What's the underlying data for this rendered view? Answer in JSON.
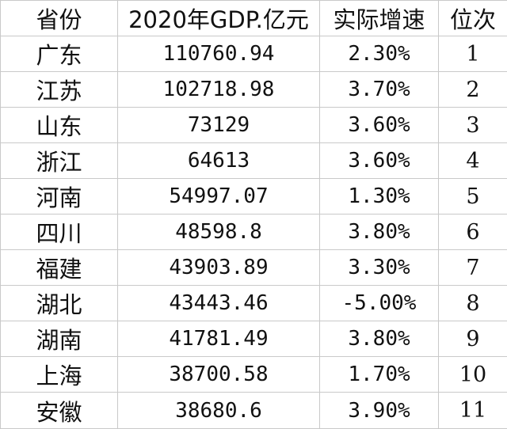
{
  "table": {
    "headers": [
      "省份",
      "2020年GDP.亿元",
      "实际增速",
      "位次"
    ],
    "rows": [
      {
        "province": "广东",
        "gdp": "110760.94",
        "growth": "2.30%",
        "rank": "1"
      },
      {
        "province": "江苏",
        "gdp": "102718.98",
        "growth": "3.70%",
        "rank": "2"
      },
      {
        "province": "山东",
        "gdp": "73129",
        "growth": "3.60%",
        "rank": "3"
      },
      {
        "province": "浙江",
        "gdp": "64613",
        "growth": "3.60%",
        "rank": "4"
      },
      {
        "province": "河南",
        "gdp": "54997.07",
        "growth": "1.30%",
        "rank": "5"
      },
      {
        "province": "四川",
        "gdp": "48598.8",
        "growth": "3.80%",
        "rank": "6"
      },
      {
        "province": "福建",
        "gdp": "43903.89",
        "growth": "3.30%",
        "rank": "7"
      },
      {
        "province": "湖北",
        "gdp": "43443.46",
        "growth": "-5.00%",
        "rank": "8"
      },
      {
        "province": "湖南",
        "gdp": "41781.49",
        "growth": "3.80%",
        "rank": "9"
      },
      {
        "province": "上海",
        "gdp": "38700.58",
        "growth": "1.70%",
        "rank": "10"
      },
      {
        "province": "安徽",
        "gdp": "38680.6",
        "growth": "3.90%",
        "rank": "11"
      }
    ]
  }
}
